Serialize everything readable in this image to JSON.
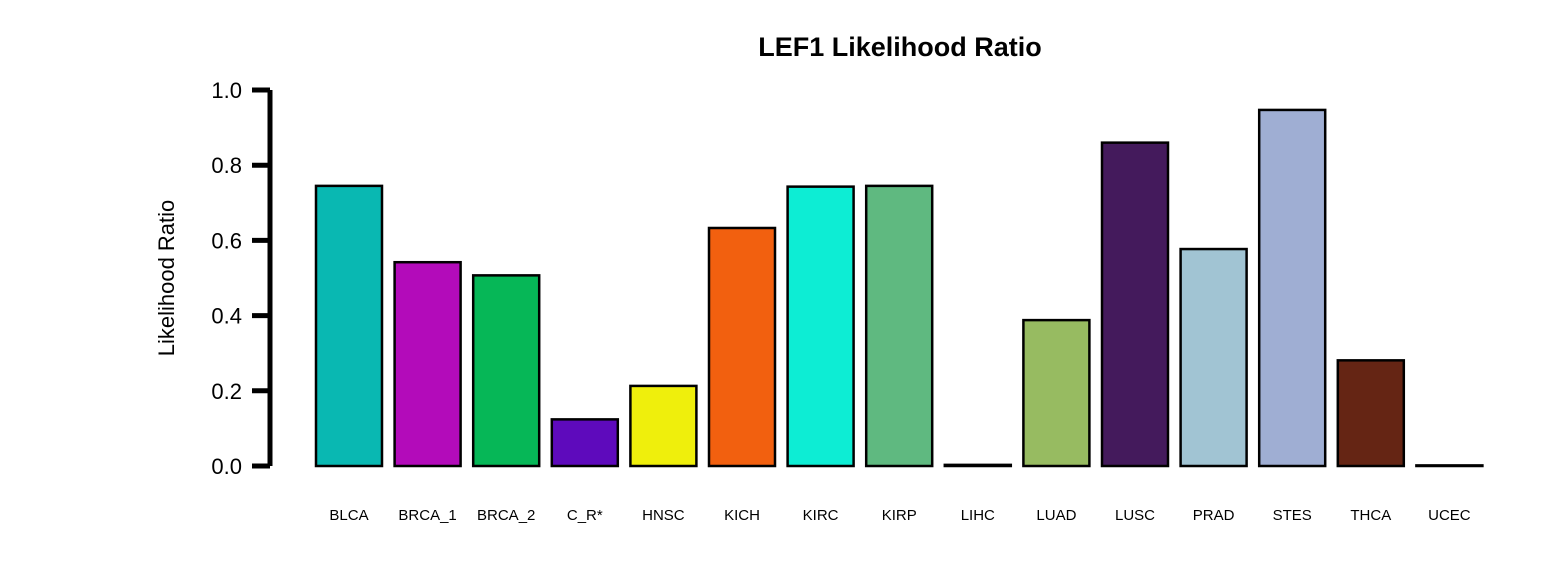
{
  "chart_data": {
    "type": "bar",
    "title": "LEF1 Likelihood Ratio",
    "xlabel": "",
    "ylabel": "Likelihood Ratio",
    "ylim": [
      0,
      1.0
    ],
    "yticks": [
      "0.0",
      "0.2",
      "0.4",
      "0.6",
      "0.8",
      "1.0"
    ],
    "categories": [
      "BLCA",
      "BRCA_1",
      "BRCA_2",
      "C_R*",
      "HNSC",
      "KICH",
      "KIRC",
      "KIRP",
      "LIHC",
      "LUAD",
      "LUSC",
      "PRAD",
      "STES",
      "THCA",
      "UCEC"
    ],
    "values": [
      0.745,
      0.542,
      0.507,
      0.124,
      0.213,
      0.633,
      0.743,
      0.745,
      0.003,
      0.388,
      0.86,
      0.577,
      0.947,
      0.281,
      0.0
    ],
    "colors": [
      "#09B8B2",
      "#B30BBA",
      "#06B757",
      "#5E0ABC",
      "#EFEF0C",
      "#F2600F",
      "#0DEDD4",
      "#5FB980",
      "#000000",
      "#97BB61",
      "#441A5C",
      "#A1C4D3",
      "#9FAED3",
      "#652514",
      "#000000"
    ],
    "grid": false,
    "legend": "none"
  }
}
